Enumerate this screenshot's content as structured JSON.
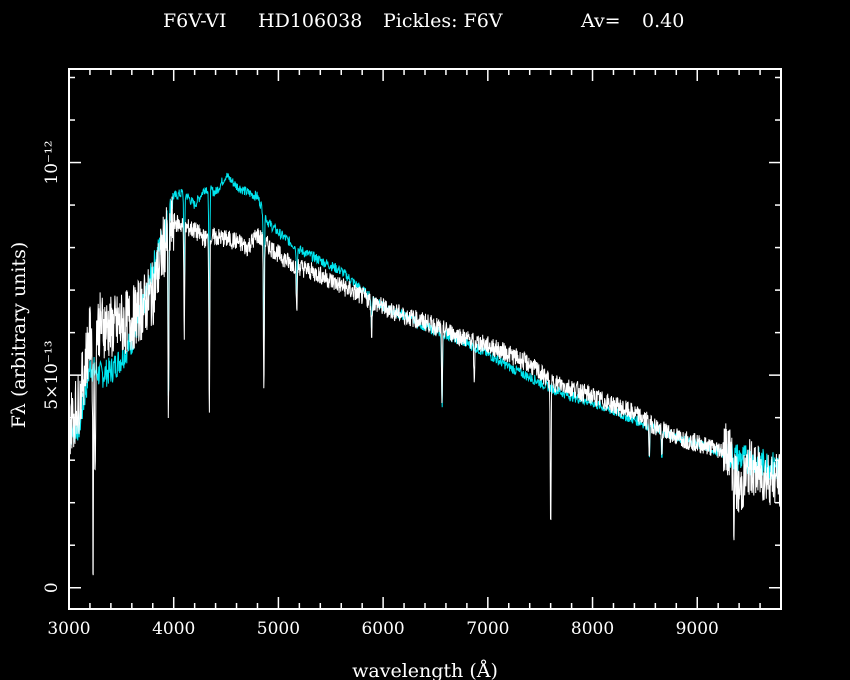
{
  "header": {
    "title_parts": [
      "F6V-VI",
      "HD106038",
      "Pickles: F6V",
      "Av=",
      "0.40"
    ]
  },
  "chart_data": {
    "type": "line",
    "title": "F6V-VI   HD106038   Pickles: F6V        Av=   0.40",
    "xlabel": "wavelength (Å)",
    "ylabel": "Fλ (arbitrary units)",
    "xlim": [
      3000,
      9800
    ],
    "ylim": [
      -5e-14,
      1.22e-12
    ],
    "x_ticks": [
      3000,
      4000,
      5000,
      6000,
      7000,
      8000,
      9000
    ],
    "y_ticks": [
      {
        "value": 0,
        "label": "0"
      },
      {
        "value": 5e-13,
        "label": "5×10⁻¹³"
      },
      {
        "value": 1e-12,
        "label": "10⁻¹²"
      }
    ],
    "colors": {
      "observed": "#ffffff",
      "template": "#00e5ee",
      "background": "#000000",
      "axes": "#ffffff"
    },
    "series": [
      {
        "id": "observed",
        "x": [
          3000,
          3100,
          3150,
          3200,
          3250,
          3300,
          3400,
          3500,
          3600,
          3700,
          3800,
          3900,
          4000,
          4100,
          4200,
          4300,
          4400,
          4500,
          4600,
          4700,
          4800,
          4900,
          5000,
          5100,
          5200,
          5400,
          5600,
          5800,
          6000,
          6200,
          6400,
          6600,
          6800,
          7000,
          7200,
          7400,
          7600,
          7800,
          8000,
          8200,
          8400,
          8600,
          8800,
          9000,
          9200,
          9300,
          9400,
          9500,
          9600,
          9700,
          9800
        ],
        "y": [
          3.8e-13,
          4.4e-13,
          5.2e-13,
          5.9e-13,
          6.1e-13,
          6.2e-13,
          6.1e-13,
          6.2e-13,
          6.3e-13,
          6.6e-13,
          6.9e-13,
          8e-13,
          8.6e-13,
          8.5e-13,
          8.4e-13,
          8.2e-13,
          8.25e-13,
          8.2e-13,
          8.15e-13,
          8e-13,
          8.3e-13,
          8.05e-13,
          7.85e-13,
          7.65e-13,
          7.55e-13,
          7.35e-13,
          7.1e-13,
          6.85e-13,
          6.6e-13,
          6.4e-13,
          6.25e-13,
          6.05e-13,
          5.85e-13,
          5.7e-13,
          5.5e-13,
          5.25e-13,
          4.85e-13,
          4.7e-13,
          4.5e-13,
          4.3e-13,
          4.1e-13,
          3.8e-13,
          3.55e-13,
          3.4e-13,
          3.25e-13,
          3.3e-13,
          2.2e-13,
          2.85e-13,
          2.65e-13,
          2.6e-13,
          2.5e-13
        ]
      },
      {
        "id": "template",
        "x": [
          3000,
          3100,
          3200,
          3300,
          3400,
          3500,
          3600,
          3700,
          3800,
          3900,
          4000,
          4100,
          4200,
          4300,
          4400,
          4500,
          4600,
          4700,
          4800,
          4900,
          5000,
          5200,
          5400,
          5600,
          5800,
          6000,
          6200,
          6400,
          6600,
          6800,
          7000,
          7200,
          7400,
          7600,
          7800,
          8000,
          8200,
          8400,
          8600,
          8800,
          9000,
          9200,
          9400,
          9600,
          9800
        ],
        "y": [
          3.6e-13,
          3.8e-13,
          5.2e-13,
          5e-13,
          5.1e-13,
          5.4e-13,
          5.8e-13,
          6.5e-13,
          7.5e-13,
          8.3e-13,
          9.2e-13,
          9.3e-13,
          9e-13,
          9.4e-13,
          9.3e-13,
          9.7e-13,
          9.45e-13,
          9.3e-13,
          9.2e-13,
          8.6e-13,
          8.35e-13,
          7.95e-13,
          7.7e-13,
          7.45e-13,
          7e-13,
          6.6e-13,
          6.4e-13,
          6.15e-13,
          5.95e-13,
          5.75e-13,
          5.5e-13,
          5.2e-13,
          4.95e-13,
          4.7e-13,
          4.5e-13,
          4.35e-13,
          4.15e-13,
          3.95e-13,
          3.75e-13,
          3.55e-13,
          3.4e-13,
          3.2e-13,
          3.05e-13,
          2.95e-13,
          2.8e-13
        ]
      }
    ],
    "absorption_features": [
      {
        "x": 3230,
        "depth": 5.5e-13,
        "series": "observed"
      },
      {
        "x": 3250,
        "depth": 4e-13,
        "series": "observed"
      },
      {
        "x": 3950,
        "depth": 4.5e-13,
        "series": "both"
      },
      {
        "x": 4101,
        "depth": 2.5e-13,
        "series": "both"
      },
      {
        "x": 4340,
        "depth": 4e-13,
        "series": "both"
      },
      {
        "x": 4861,
        "depth": 3.5e-13,
        "series": "both"
      },
      {
        "x": 5175,
        "depth": 1.2e-13,
        "series": "both"
      },
      {
        "x": 5890,
        "depth": 8e-14,
        "series": "both"
      },
      {
        "x": 6563,
        "depth": 1.8e-13,
        "series": "both"
      },
      {
        "x": 6870,
        "depth": 1.1e-13,
        "series": "observed"
      },
      {
        "x": 7600,
        "depth": 3.4e-13,
        "series": "observed"
      },
      {
        "x": 8542,
        "depth": 7e-14,
        "series": "both"
      },
      {
        "x": 8662,
        "depth": 7e-14,
        "series": "both"
      },
      {
        "x": 9350,
        "depth": 1.2e-13,
        "series": "observed"
      }
    ]
  }
}
